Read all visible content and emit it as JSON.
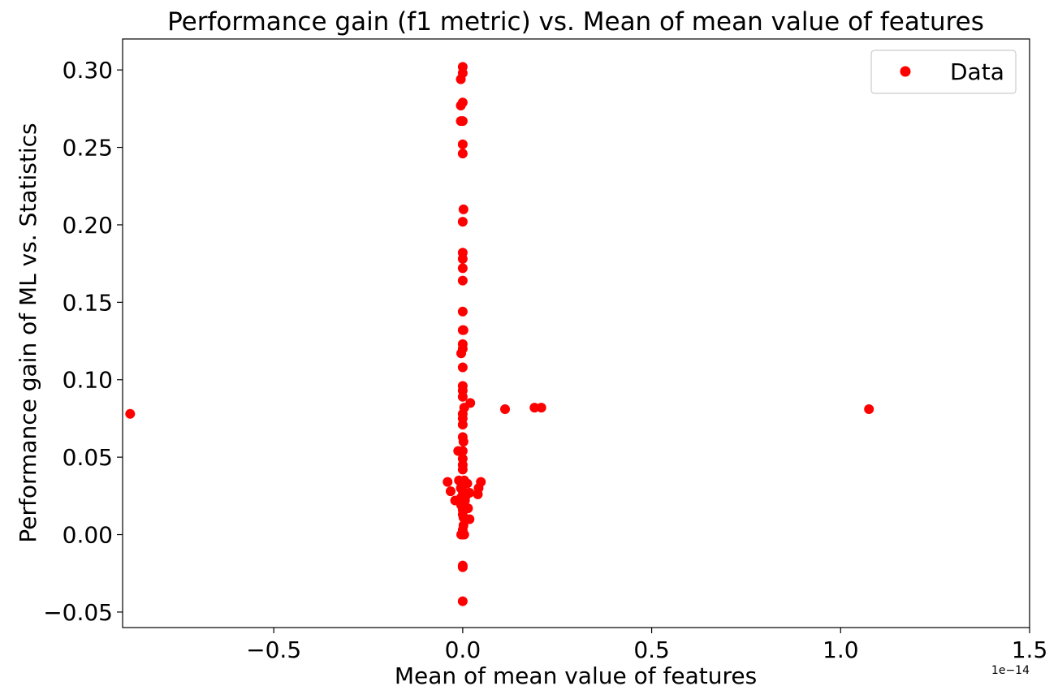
{
  "chart_data": {
    "type": "scatter",
    "title": "Performance gain (f1 metric) vs. Mean of mean value of features",
    "xlabel": "Mean of mean value of features",
    "ylabel": "Performance gain of ML vs. Statistics",
    "x_offset_label": "1e−14",
    "xlim": [
      -0.9,
      1.5
    ],
    "ylim": [
      -0.06,
      0.32
    ],
    "x_ticks": [
      -0.5,
      0.0,
      0.5,
      1.0,
      1.5
    ],
    "x_tick_labels": [
      "−0.5",
      "0.0",
      "0.5",
      "1.0",
      "1.5"
    ],
    "y_ticks": [
      -0.05,
      0.0,
      0.05,
      0.1,
      0.15,
      0.2,
      0.25,
      0.3
    ],
    "y_tick_labels": [
      "−0.05",
      "0.00",
      "0.05",
      "0.10",
      "0.15",
      "0.20",
      "0.25",
      "0.30"
    ],
    "grid": false,
    "legend_position": "top-right",
    "series": [
      {
        "name": "Data",
        "color": "#ff0000",
        "marker": "circle",
        "points": [
          [
            0.0,
            0.302
          ],
          [
            0.0,
            0.298
          ],
          [
            -0.005,
            0.294
          ],
          [
            0.0,
            0.279
          ],
          [
            -0.005,
            0.277
          ],
          [
            0.0,
            0.267
          ],
          [
            -0.005,
            0.267
          ],
          [
            0.0,
            0.252
          ],
          [
            0.0,
            0.246
          ],
          [
            0.002,
            0.21
          ],
          [
            0.0,
            0.202
          ],
          [
            0.0,
            0.182
          ],
          [
            0.0,
            0.178
          ],
          [
            0.0,
            0.172
          ],
          [
            0.0,
            0.164
          ],
          [
            0.0,
            0.144
          ],
          [
            0.0,
            0.132
          ],
          [
            0.002,
            0.132
          ],
          [
            0.0,
            0.123
          ],
          [
            0.0,
            0.12
          ],
          [
            -0.004,
            0.117
          ],
          [
            0.0,
            0.108
          ],
          [
            0.0,
            0.096
          ],
          [
            0.0,
            0.093
          ],
          [
            0.0,
            0.089
          ],
          [
            0.02,
            0.085
          ],
          [
            0.004,
            0.082
          ],
          [
            0.0,
            0.078
          ],
          [
            0.0,
            0.075
          ],
          [
            0.0,
            0.071
          ],
          [
            0.0,
            0.063
          ],
          [
            0.002,
            0.06
          ],
          [
            -0.012,
            0.054
          ],
          [
            0.0,
            0.054
          ],
          [
            0.0,
            0.049
          ],
          [
            0.0,
            0.045
          ],
          [
            0.0,
            0.042
          ],
          [
            -0.04,
            0.034
          ],
          [
            -0.01,
            0.035
          ],
          [
            0.004,
            0.035
          ],
          [
            0.012,
            0.033
          ],
          [
            0.048,
            0.034
          ],
          [
            0.042,
            0.03
          ],
          [
            -0.005,
            0.03
          ],
          [
            0.0,
            0.028
          ],
          [
            -0.032,
            0.028
          ],
          [
            0.018,
            0.027
          ],
          [
            0.04,
            0.026
          ],
          [
            0.008,
            0.025
          ],
          [
            -0.004,
            0.024
          ],
          [
            -0.02,
            0.022
          ],
          [
            0.006,
            0.022
          ],
          [
            0.0,
            0.02
          ],
          [
            -0.004,
            0.019
          ],
          [
            0.014,
            0.017
          ],
          [
            0.0,
            0.016
          ],
          [
            0.0,
            0.013
          ],
          [
            0.002,
            0.011
          ],
          [
            0.018,
            0.01
          ],
          [
            0.002,
            0.006
          ],
          [
            0.0,
            0.003
          ],
          [
            -0.004,
            0.0
          ],
          [
            0.0,
            0.0
          ],
          [
            0.004,
            0.0
          ],
          [
            0.0,
            -0.02
          ],
          [
            0.0,
            -0.021
          ],
          [
            0.0,
            -0.043
          ],
          [
            0.112,
            0.081
          ],
          [
            0.19,
            0.082
          ],
          [
            0.208,
            0.082
          ],
          [
            -0.88,
            0.078
          ],
          [
            1.075,
            0.081
          ]
        ]
      }
    ]
  }
}
